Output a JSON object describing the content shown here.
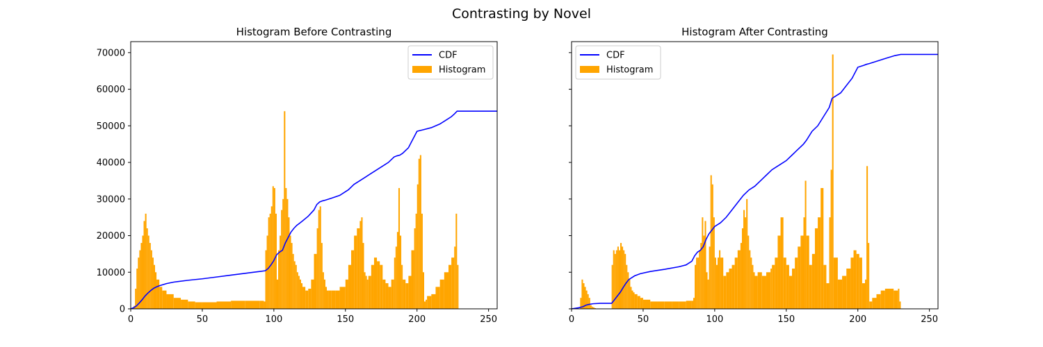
{
  "figure": {
    "title": "Contrasting by Novel"
  },
  "chart_data": [
    {
      "type": "bar",
      "title": "Histogram Before Contrasting",
      "xlabel": "",
      "ylabel": "",
      "xlim": [
        0,
        256
      ],
      "ylim": [
        0,
        73000
      ],
      "xticks": [
        0,
        50,
        100,
        150,
        200,
        250
      ],
      "yticks": [
        0,
        10000,
        20000,
        30000,
        40000,
        50000,
        60000,
        70000
      ],
      "ytick_labels_shown": true,
      "legend": {
        "location": "top-right",
        "entries": [
          {
            "label": "CDF",
            "color": "#0000ff"
          },
          {
            "label": "Histogram",
            "color": "#ffa500"
          }
        ]
      },
      "histogram": {
        "name": "Histogram",
        "color": "#ffa500",
        "bins": [
          2,
          3,
          4,
          5,
          6,
          7,
          8,
          9,
          10,
          11,
          12,
          13,
          14,
          15,
          16,
          17,
          18,
          20,
          22,
          25,
          30,
          35,
          40,
          45,
          50,
          60,
          70,
          80,
          90,
          93,
          94,
          95,
          96,
          97,
          98,
          99,
          100,
          101,
          102,
          103,
          104,
          105,
          106,
          107,
          108,
          109,
          110,
          111,
          112,
          113,
          114,
          115,
          116,
          117,
          118,
          119,
          120,
          122,
          124,
          126,
          128,
          130,
          131,
          132,
          133,
          134,
          135,
          136,
          137,
          138,
          140,
          143,
          146,
          150,
          152,
          154,
          156,
          158,
          160,
          161,
          162,
          163,
          164,
          165,
          166,
          168,
          170,
          172,
          174,
          176,
          178,
          180,
          182,
          184,
          185,
          186,
          187,
          188,
          189,
          190,
          192,
          194,
          196,
          198,
          199,
          200,
          201,
          202,
          203,
          204,
          205,
          206,
          207,
          210,
          213,
          216,
          219,
          222,
          224,
          226,
          227,
          228,
          229
        ],
        "values": [
          800,
          5500,
          11000,
          14000,
          16000,
          18000,
          20000,
          24000,
          26000,
          22000,
          20000,
          18000,
          16000,
          14000,
          12000,
          10000,
          8000,
          6000,
          5000,
          4000,
          3000,
          2500,
          2000,
          1800,
          1800,
          2000,
          2200,
          2200,
          2200,
          2000,
          16000,
          20000,
          25000,
          26000,
          28000,
          33500,
          33000,
          26000,
          8000,
          16000,
          20000,
          27000,
          30000,
          54000,
          33000,
          30000,
          25000,
          20000,
          18000,
          15000,
          13000,
          12000,
          10000,
          9000,
          8000,
          7000,
          6000,
          5000,
          5500,
          8000,
          15000,
          22000,
          27000,
          28000,
          18000,
          10000,
          8000,
          6000,
          5000,
          5000,
          5000,
          5000,
          6000,
          8000,
          12000,
          16000,
          20000,
          22000,
          24000,
          25000,
          18000,
          10000,
          9000,
          8000,
          9000,
          12000,
          14000,
          13000,
          12000,
          8000,
          7000,
          6000,
          8000,
          14000,
          17000,
          21000,
          33000,
          20000,
          12000,
          8000,
          7000,
          9000,
          16000,
          22000,
          26000,
          34000,
          41000,
          42000,
          26000,
          10000,
          2000,
          2500,
          3500,
          4000,
          6000,
          8000,
          10000,
          12000,
          14000,
          17000,
          26000,
          12000,
          0
        ]
      },
      "cdf": {
        "name": "CDF",
        "color": "#0000ff",
        "x": [
          0,
          2,
          4,
          6,
          8,
          10,
          12,
          14,
          16,
          18,
          20,
          25,
          30,
          40,
          50,
          60,
          70,
          80,
          90,
          94,
          96,
          98,
          100,
          102,
          104,
          106,
          108,
          110,
          112,
          114,
          116,
          118,
          120,
          124,
          128,
          130,
          132,
          134,
          136,
          140,
          146,
          152,
          156,
          160,
          164,
          168,
          172,
          176,
          180,
          184,
          186,
          188,
          190,
          194,
          196,
          198,
          200,
          202,
          204,
          210,
          216,
          220,
          224,
          226,
          228,
          230,
          240,
          250,
          256
        ],
        "y": [
          0,
          300,
          800,
          1600,
          2500,
          3500,
          4300,
          5000,
          5600,
          6000,
          6300,
          6900,
          7300,
          7800,
          8200,
          8700,
          9200,
          9700,
          10200,
          10400,
          11000,
          12000,
          13200,
          14800,
          15500,
          16000,
          18000,
          19500,
          21000,
          22000,
          22800,
          23400,
          24000,
          25300,
          27000,
          28500,
          29200,
          29500,
          29700,
          30200,
          31000,
          32500,
          34000,
          35000,
          36000,
          37000,
          38000,
          39000,
          40000,
          41500,
          41800,
          42000,
          42500,
          44000,
          45500,
          47000,
          48500,
          48700,
          48900,
          49500,
          50500,
          51500,
          52500,
          53200,
          54000,
          54000,
          54000,
          54000,
          54000
        ]
      }
    },
    {
      "type": "bar",
      "title": "Histogram After Contrasting",
      "xlabel": "",
      "ylabel": "",
      "xlim": [
        0,
        256
      ],
      "ylim": [
        0,
        73000
      ],
      "xticks": [
        0,
        50,
        100,
        150,
        200,
        250
      ],
      "yticks": [
        0,
        10000,
        20000,
        30000,
        40000,
        50000,
        60000,
        70000
      ],
      "ytick_labels_shown": false,
      "legend": {
        "location": "top-left",
        "entries": [
          {
            "label": "CDF",
            "color": "#0000ff"
          },
          {
            "label": "Histogram",
            "color": "#ffa500"
          }
        ]
      },
      "histogram": {
        "name": "Histogram",
        "color": "#ffa500",
        "bins": [
          6,
          7,
          8,
          9,
          10,
          11,
          12,
          13,
          14,
          15,
          16,
          17,
          28,
          29,
          30,
          31,
          32,
          33,
          34,
          35,
          36,
          37,
          38,
          39,
          40,
          41,
          42,
          43,
          44,
          46,
          48,
          50,
          55,
          60,
          65,
          70,
          75,
          80,
          84,
          85,
          86,
          87,
          88,
          89,
          90,
          91,
          92,
          93,
          94,
          95,
          96,
          97,
          98,
          99,
          100,
          101,
          102,
          103,
          104,
          106,
          108,
          110,
          112,
          114,
          116,
          118,
          119,
          120,
          121,
          122,
          123,
          124,
          125,
          126,
          127,
          128,
          130,
          133,
          136,
          139,
          140,
          142,
          144,
          146,
          148,
          150,
          152,
          154,
          156,
          158,
          160,
          162,
          163,
          164,
          166,
          168,
          170,
          172,
          174,
          176,
          178,
          180,
          181,
          182,
          183,
          186,
          189,
          192,
          195,
          197,
          199,
          201,
          203,
          205,
          206,
          207,
          208,
          210,
          213,
          216,
          219,
          222,
          225,
          228,
          229,
          230
        ],
        "values": [
          3000,
          8000,
          7000,
          6000,
          5000,
          4000,
          3000,
          1000,
          600,
          400,
          200,
          0,
          12000,
          16000,
          15000,
          16000,
          17000,
          16000,
          18000,
          17000,
          16000,
          15000,
          12000,
          10000,
          8000,
          6000,
          5000,
          4500,
          4000,
          3500,
          3000,
          2500,
          2000,
          2000,
          2000,
          2000,
          2000,
          2200,
          2200,
          3000,
          12000,
          14000,
          14000,
          16000,
          18000,
          25000,
          20000,
          24000,
          10000,
          8000,
          17000,
          36500,
          34000,
          25000,
          14000,
          12000,
          14000,
          16000,
          14000,
          9000,
          10000,
          11000,
          12000,
          14000,
          16000,
          18000,
          22000,
          27000,
          25000,
          30000,
          20000,
          16000,
          14000,
          12000,
          10000,
          9000,
          10000,
          9000,
          10000,
          11000,
          12000,
          14000,
          20000,
          25000,
          14000,
          12000,
          9000,
          11000,
          14000,
          17000,
          20000,
          25000,
          35000,
          20000,
          12000,
          15000,
          22000,
          25000,
          33000,
          12000,
          7000,
          25000,
          38000,
          69500,
          14000,
          8000,
          9000,
          11000,
          14000,
          16000,
          15000,
          14000,
          7000,
          8000,
          39000,
          18000,
          2000,
          3000,
          4000,
          5000,
          5500,
          5500,
          5000,
          5500,
          2000,
          0
        ]
      },
      "cdf": {
        "name": "CDF",
        "color": "#0000ff",
        "x": [
          0,
          5,
          8,
          10,
          12,
          15,
          20,
          25,
          28,
          30,
          32,
          34,
          36,
          38,
          40,
          44,
          48,
          55,
          65,
          75,
          80,
          84,
          86,
          88,
          90,
          92,
          94,
          96,
          98,
          100,
          104,
          108,
          112,
          116,
          120,
          124,
          128,
          132,
          136,
          140,
          144,
          146,
          150,
          154,
          158,
          162,
          164,
          168,
          172,
          176,
          180,
          182,
          184,
          188,
          192,
          196,
          200,
          204,
          206,
          208,
          212,
          216,
          220,
          226,
          230,
          240,
          250,
          256
        ],
        "y": [
          0,
          300,
          600,
          1000,
          1200,
          1400,
          1500,
          1500,
          1500,
          2500,
          3500,
          4500,
          5800,
          7000,
          8000,
          9000,
          9600,
          10200,
          10800,
          11500,
          12000,
          13000,
          14500,
          15500,
          16000,
          17000,
          19000,
          20500,
          21500,
          22500,
          23500,
          25000,
          27000,
          29000,
          31000,
          32500,
          33500,
          35000,
          36500,
          38000,
          39000,
          39500,
          40500,
          42000,
          43500,
          45000,
          46000,
          48500,
          50000,
          52500,
          55000,
          57500,
          58000,
          59000,
          61000,
          63000,
          66000,
          66500,
          66800,
          67000,
          67500,
          68000,
          68500,
          69200,
          69500,
          69500,
          69500,
          69500
        ]
      }
    }
  ]
}
